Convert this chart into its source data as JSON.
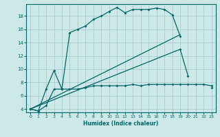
{
  "title": "",
  "xlabel": "Humidex (Indice chaleur)",
  "bg_color": "#cce8e8",
  "grid_color": "#aacccc",
  "line_color": "#006666",
  "xlim": [
    -0.5,
    23.5
  ],
  "ylim": [
    3.5,
    19.8
  ],
  "xticks": [
    0,
    1,
    2,
    3,
    4,
    5,
    6,
    7,
    8,
    9,
    10,
    11,
    12,
    13,
    14,
    15,
    16,
    17,
    18,
    19,
    20,
    21,
    22,
    23
  ],
  "yticks": [
    4,
    6,
    8,
    10,
    12,
    14,
    16,
    18
  ],
  "s1x": [
    0,
    1,
    2,
    3,
    4,
    5,
    6,
    7,
    8,
    9,
    10,
    11,
    12,
    13,
    14,
    15,
    16,
    17,
    18,
    19
  ],
  "s1y": [
    4.0,
    3.7,
    7.0,
    9.8,
    7.0,
    15.5,
    16.0,
    16.5,
    17.5,
    18.0,
    18.7,
    19.3,
    18.5,
    19.0,
    19.0,
    19.0,
    19.2,
    19.0,
    18.2,
    15.0
  ],
  "s2x": [
    0,
    1,
    2,
    3,
    4,
    5,
    6,
    7,
    8,
    9,
    10,
    11,
    12,
    13,
    14,
    15,
    16,
    17,
    18,
    19,
    20,
    21,
    22,
    23
  ],
  "s2y": [
    4.0,
    3.7,
    4.5,
    7.0,
    7.0,
    7.0,
    7.0,
    7.2,
    7.5,
    7.5,
    7.5,
    7.5,
    7.5,
    7.7,
    7.5,
    7.7,
    7.7,
    7.7,
    7.7,
    7.7,
    7.7,
    7.7,
    7.7,
    7.5
  ],
  "s3x": [
    0,
    19,
    20,
    21,
    23
  ],
  "s3y": [
    4.0,
    13.0,
    9.0,
    null,
    7.2
  ],
  "s4x": [
    0,
    19,
    20
  ],
  "s4y": [
    4.0,
    15.2,
    null
  ]
}
